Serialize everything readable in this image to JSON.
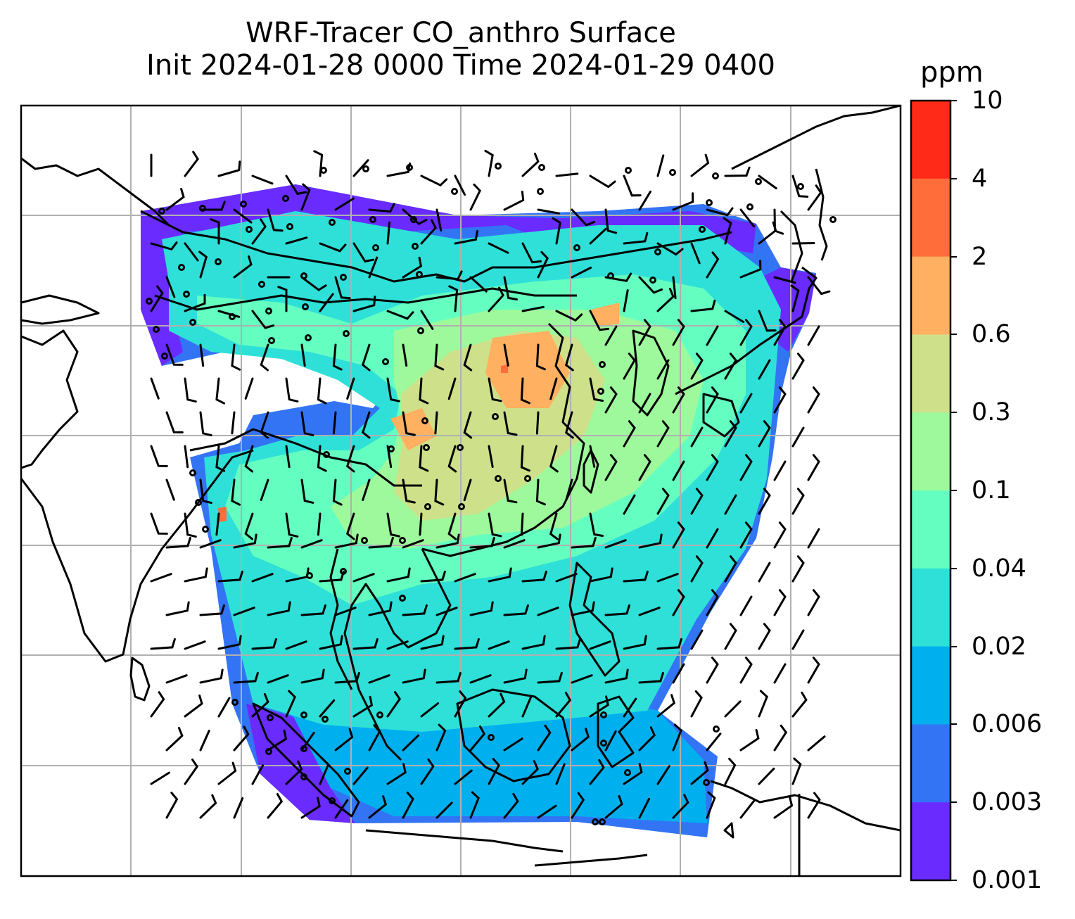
{
  "title_line1": "WRF-Tracer CO_anthro Surface",
  "title_line2": "Init 2024-01-28 0000 Time 2024-01-29 0400",
  "colorbar": {
    "unit": "ppm",
    "ticks": [
      "10",
      "4",
      "2",
      "0.6",
      "0.3",
      "0.1",
      "0.04",
      "0.02",
      "0.006",
      "0.003",
      "0.001"
    ],
    "bands": [
      "#ff2a17",
      "#ff6e3a",
      "#ffb060",
      "#cfe08a",
      "#9ef99c",
      "#64ffc0",
      "#2ee0d8",
      "#00b0ee",
      "#3374f5",
      "#6a2bff"
    ]
  },
  "colors": {
    "frame": "#000000",
    "gridline": "#b0b0b0",
    "coastline": "#000000",
    "barb": "#000000"
  },
  "legend_placement": "right colorbar"
}
